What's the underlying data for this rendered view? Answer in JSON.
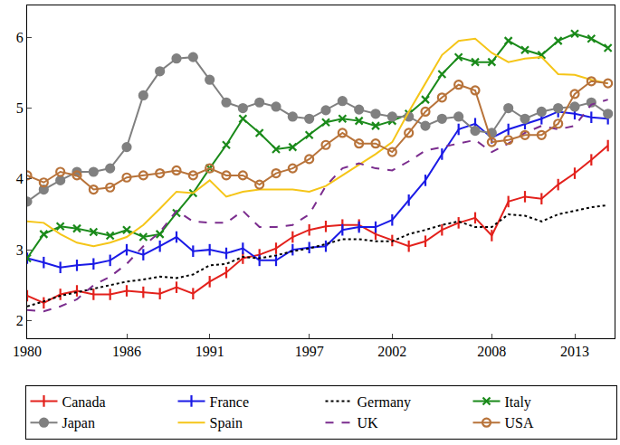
{
  "chart_data": {
    "type": "line",
    "x": [
      1980,
      1981,
      1982,
      1983,
      1984,
      1985,
      1986,
      1987,
      1988,
      1989,
      1990,
      1991,
      1992,
      1993,
      1994,
      1995,
      1996,
      1997,
      1998,
      1999,
      2000,
      2001,
      2002,
      2003,
      2004,
      2005,
      2006,
      2007,
      2008,
      2009,
      2010,
      2011,
      2012,
      2013,
      2014,
      2015
    ],
    "xlim": [
      1980,
      2015.4
    ],
    "xticks": [
      1980,
      1986,
      1991,
      1997,
      2002,
      2008,
      2013
    ],
    "ylim": [
      1.75,
      6.45
    ],
    "yticks": [
      2,
      3,
      4,
      5,
      6
    ],
    "grid": false,
    "legend": "bottom",
    "series": [
      {
        "name": "Canada",
        "color": "#e3211c",
        "marker": "vline",
        "line_style": "solid",
        "values": [
          2.35,
          2.25,
          2.37,
          2.42,
          2.37,
          2.37,
          2.42,
          2.4,
          2.38,
          2.47,
          2.38,
          2.55,
          2.68,
          2.88,
          2.93,
          3.02,
          3.18,
          3.28,
          3.33,
          3.35,
          3.35,
          3.22,
          3.13,
          3.05,
          3.12,
          3.28,
          3.38,
          3.45,
          3.2,
          3.68,
          3.75,
          3.72,
          3.92,
          4.08,
          4.27,
          4.47
        ]
      },
      {
        "name": "France",
        "color": "#1a1ae6",
        "marker": "vline",
        "line_style": "solid",
        "values": [
          2.88,
          2.82,
          2.75,
          2.78,
          2.8,
          2.85,
          3.0,
          2.93,
          3.05,
          3.18,
          2.98,
          3.0,
          2.95,
          3.02,
          2.85,
          2.85,
          3.0,
          3.03,
          3.05,
          3.28,
          3.32,
          3.32,
          3.42,
          3.7,
          3.98,
          4.35,
          4.7,
          4.78,
          4.58,
          4.7,
          4.78,
          4.85,
          4.95,
          4.92,
          4.87,
          4.85
        ]
      },
      {
        "name": "Germany",
        "color": "#000000",
        "marker": "none",
        "line_style": "dotted",
        "values": [
          2.2,
          2.27,
          2.35,
          2.4,
          2.45,
          2.5,
          2.55,
          2.58,
          2.62,
          2.6,
          2.65,
          2.78,
          2.8,
          2.9,
          2.88,
          2.92,
          2.98,
          3.02,
          3.08,
          3.15,
          3.15,
          3.12,
          3.12,
          3.22,
          3.28,
          3.35,
          3.4,
          3.32,
          3.32,
          3.5,
          3.48,
          3.4,
          3.5,
          3.55,
          3.6,
          3.63
        ]
      },
      {
        "name": "Italy",
        "color": "#1a8a1a",
        "marker": "x",
        "line_style": "solid",
        "values": [
          2.88,
          3.22,
          3.33,
          3.3,
          3.25,
          3.2,
          3.28,
          3.18,
          3.22,
          3.52,
          3.8,
          4.15,
          4.48,
          4.85,
          4.65,
          4.42,
          4.45,
          4.62,
          4.8,
          4.85,
          4.82,
          4.75,
          4.82,
          4.92,
          5.12,
          5.48,
          5.72,
          5.65,
          5.65,
          5.95,
          5.82,
          5.75,
          5.95,
          6.05,
          5.98,
          5.85
        ]
      },
      {
        "name": "Japan",
        "color": "#808080",
        "marker": "circle",
        "line_style": "solid",
        "values": [
          3.68,
          3.85,
          3.98,
          4.1,
          4.1,
          4.15,
          4.45,
          5.18,
          5.52,
          5.7,
          5.72,
          5.4,
          5.08,
          5.0,
          5.08,
          5.02,
          4.88,
          4.85,
          4.97,
          5.1,
          4.98,
          4.92,
          4.88,
          4.88,
          4.75,
          4.85,
          4.88,
          4.68,
          4.65,
          5.0,
          4.85,
          4.95,
          5.0,
          5.02,
          5.08,
          4.92
        ]
      },
      {
        "name": "Spain",
        "color": "#f5c518",
        "marker": "none",
        "line_style": "solid",
        "values": [
          3.4,
          3.38,
          3.22,
          3.1,
          3.05,
          3.1,
          3.18,
          3.35,
          3.58,
          3.82,
          3.8,
          3.98,
          3.75,
          3.82,
          3.85,
          3.85,
          3.85,
          3.82,
          3.9,
          4.05,
          4.2,
          4.35,
          4.52,
          4.95,
          5.35,
          5.75,
          5.95,
          5.98,
          5.78,
          5.65,
          5.7,
          5.72,
          5.48,
          5.47,
          5.4,
          5.35
        ]
      },
      {
        "name": "UK",
        "color": "#7b2d8e",
        "marker": "none",
        "line_style": "dashed",
        "values": [
          2.15,
          2.13,
          2.2,
          2.3,
          2.5,
          2.62,
          2.8,
          3.05,
          3.25,
          3.55,
          3.4,
          3.38,
          3.38,
          3.55,
          3.32,
          3.32,
          3.35,
          3.5,
          3.9,
          4.15,
          4.22,
          4.15,
          4.12,
          4.25,
          4.4,
          4.45,
          4.5,
          4.55,
          4.38,
          4.5,
          4.65,
          4.75,
          4.7,
          4.75,
          5.05,
          5.12
        ]
      },
      {
        "name": "USA",
        "color": "#b8733a",
        "marker": "circle-open",
        "line_style": "solid",
        "values": [
          4.05,
          3.95,
          4.1,
          4.05,
          3.85,
          3.88,
          4.02,
          4.05,
          4.08,
          4.12,
          4.05,
          4.15,
          4.05,
          4.05,
          3.92,
          4.08,
          4.15,
          4.28,
          4.48,
          4.65,
          4.5,
          4.5,
          4.38,
          4.65,
          4.95,
          5.15,
          5.33,
          5.25,
          4.52,
          4.55,
          4.62,
          4.62,
          4.78,
          5.2,
          5.38,
          5.35
        ]
      }
    ]
  }
}
